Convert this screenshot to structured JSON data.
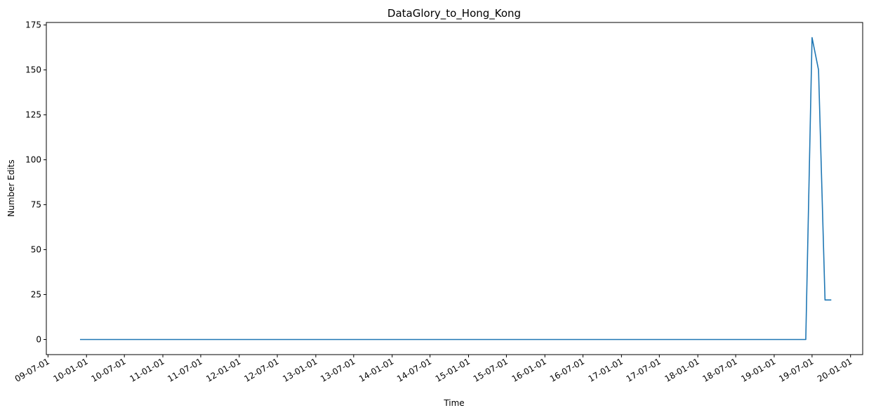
{
  "chart_data": {
    "type": "line",
    "title": "DataGlory_to_Hong_Kong",
    "xlabel": "Time",
    "ylabel": "Number Edits",
    "ylim": [
      -8.4,
      176.4
    ],
    "xlim": [
      "2009-06-23",
      "2020-02-28"
    ],
    "grid": false,
    "legend": "none",
    "line_color": "#1f77b4",
    "yticks": [
      0,
      25,
      50,
      75,
      100,
      125,
      150,
      175
    ],
    "xtick_dates": [
      "2009-07-01",
      "2010-01-01",
      "2010-07-01",
      "2011-01-01",
      "2011-07-01",
      "2012-01-01",
      "2012-07-01",
      "2013-01-01",
      "2013-07-01",
      "2014-01-01",
      "2014-07-01",
      "2015-01-01",
      "2015-07-01",
      "2016-01-01",
      "2016-07-01",
      "2017-01-01",
      "2017-07-01",
      "2018-01-01",
      "2018-07-01",
      "2019-01-01",
      "2019-07-01",
      "2020-01-01"
    ],
    "xtick_labels": [
      "09-07-01",
      "10-01-01",
      "10-07-01",
      "11-01-01",
      "11-07-01",
      "12-01-01",
      "12-07-01",
      "13-01-01",
      "13-07-01",
      "14-01-01",
      "14-07-01",
      "15-01-01",
      "15-07-01",
      "16-01-01",
      "16-07-01",
      "17-01-01",
      "17-07-01",
      "18-01-01",
      "18-07-01",
      "19-01-01",
      "19-07-01",
      "20-01-01"
    ],
    "series": [
      {
        "x": [
          "2009-12-01",
          "2019-06-01",
          "2019-07-01",
          "2019-08-01",
          "2019-09-01",
          "2019-10-01"
        ],
        "y": [
          0,
          0,
          168,
          150,
          22,
          22
        ]
      }
    ]
  }
}
